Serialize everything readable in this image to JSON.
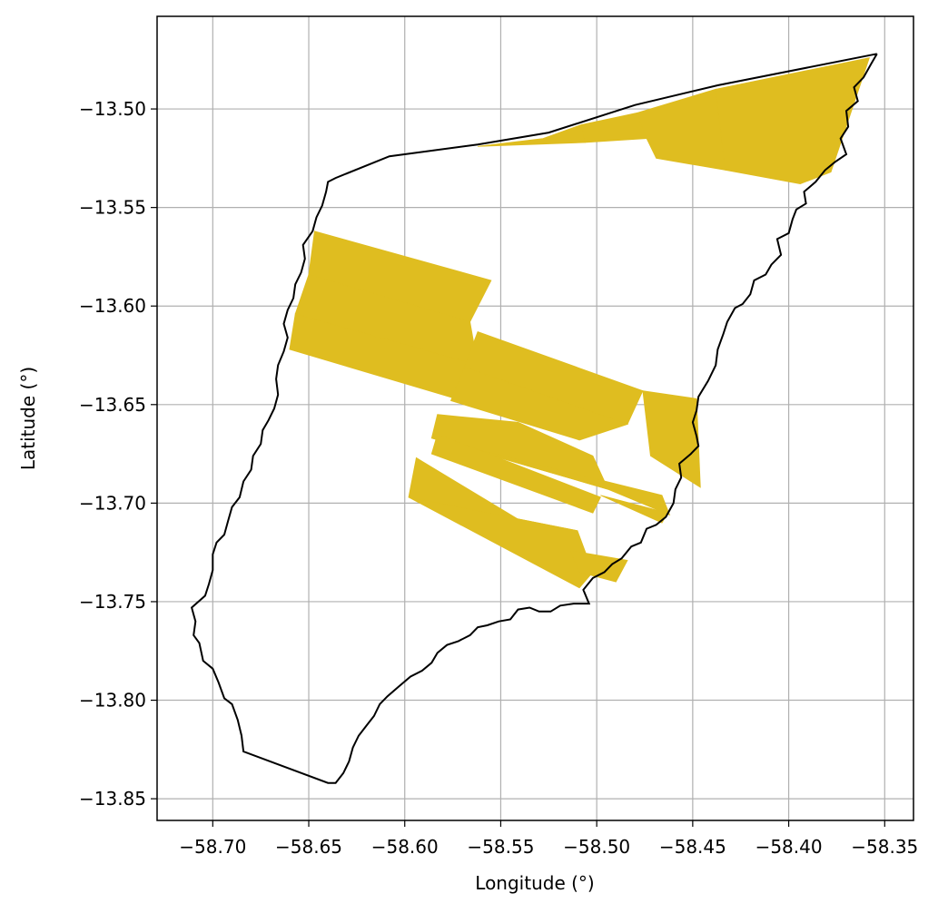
{
  "chart_data": {
    "type": "map",
    "xlabel": "Longitude (°)",
    "ylabel": "Latitude (°)",
    "xlim": [
      -58.729,
      -58.335
    ],
    "ylim": [
      -13.861,
      -13.453
    ],
    "x_ticks": [
      -58.7,
      -58.65,
      -58.6,
      -58.55,
      -58.5,
      -58.45,
      -58.4,
      -58.35
    ],
    "x_tick_labels": [
      "−58.70",
      "−58.65",
      "−58.60",
      "−58.55",
      "−58.50",
      "−58.45",
      "−58.40",
      "−58.35"
    ],
    "y_ticks": [
      -13.5,
      -13.55,
      -13.6,
      -13.65,
      -13.7,
      -13.75,
      -13.8,
      -13.85
    ],
    "y_tick_labels": [
      "−13.50",
      "−13.55",
      "−13.60",
      "−13.65",
      "−13.70",
      "−13.75",
      "−13.80",
      "−13.85"
    ],
    "grid": true,
    "fill_color": "#DFBD20",
    "outline_color": "#000000",
    "grid_color": "#b0b0b0",
    "boundary": [
      [
        -58.354,
        -13.472
      ],
      [
        -58.357,
        -13.477
      ],
      [
        -58.361,
        -13.484
      ],
      [
        -58.366,
        -13.489
      ],
      [
        -58.364,
        -13.496
      ],
      [
        -58.37,
        -13.501
      ],
      [
        -58.369,
        -13.509
      ],
      [
        -58.373,
        -13.515
      ],
      [
        -58.37,
        -13.523
      ],
      [
        -58.376,
        -13.527
      ],
      [
        -58.381,
        -13.531
      ],
      [
        -58.386,
        -13.537
      ],
      [
        -58.392,
        -13.542
      ],
      [
        -58.391,
        -13.548
      ],
      [
        -58.396,
        -13.551
      ],
      [
        -58.398,
        -13.556
      ],
      [
        -58.4,
        -13.563
      ],
      [
        -58.406,
        -13.566
      ],
      [
        -58.404,
        -13.574
      ],
      [
        -58.409,
        -13.579
      ],
      [
        -58.412,
        -13.584
      ],
      [
        -58.418,
        -13.587
      ],
      [
        -58.42,
        -13.594
      ],
      [
        -58.424,
        -13.599
      ],
      [
        -58.428,
        -13.601
      ],
      [
        -58.432,
        -13.608
      ],
      [
        -58.434,
        -13.614
      ],
      [
        -58.437,
        -13.622
      ],
      [
        -58.438,
        -13.63
      ],
      [
        -58.442,
        -13.638
      ],
      [
        -58.447,
        -13.646
      ],
      [
        -58.448,
        -13.653
      ],
      [
        -58.45,
        -13.659
      ],
      [
        -58.448,
        -13.666
      ],
      [
        -58.447,
        -13.671
      ],
      [
        -58.451,
        -13.675
      ],
      [
        -58.457,
        -13.68
      ],
      [
        -58.456,
        -13.687
      ],
      [
        -58.459,
        -13.693
      ],
      [
        -58.46,
        -13.7
      ],
      [
        -58.464,
        -13.707
      ],
      [
        -58.469,
        -13.711
      ],
      [
        -58.474,
        -13.713
      ],
      [
        -58.477,
        -13.72
      ],
      [
        -58.482,
        -13.722
      ],
      [
        -58.487,
        -13.728
      ],
      [
        -58.492,
        -13.731
      ],
      [
        -58.496,
        -13.735
      ],
      [
        -58.502,
        -13.738
      ],
      [
        -58.507,
        -13.744
      ],
      [
        -58.504,
        -13.751
      ],
      [
        -58.512,
        -13.751
      ],
      [
        -58.519,
        -13.752
      ],
      [
        -58.524,
        -13.755
      ],
      [
        -58.53,
        -13.755
      ],
      [
        -58.535,
        -13.753
      ],
      [
        -58.541,
        -13.754
      ],
      [
        -58.545,
        -13.759
      ],
      [
        -58.551,
        -13.76
      ],
      [
        -58.557,
        -13.762
      ],
      [
        -58.562,
        -13.763
      ],
      [
        -58.566,
        -13.767
      ],
      [
        -58.572,
        -13.77
      ],
      [
        -58.578,
        -13.772
      ],
      [
        -58.583,
        -13.776
      ],
      [
        -58.586,
        -13.781
      ],
      [
        -58.591,
        -13.785
      ],
      [
        -58.597,
        -13.788
      ],
      [
        -58.603,
        -13.793
      ],
      [
        -58.609,
        -13.798
      ],
      [
        -58.613,
        -13.802
      ],
      [
        -58.616,
        -13.808
      ],
      [
        -58.62,
        -13.813
      ],
      [
        -58.624,
        -13.818
      ],
      [
        -58.627,
        -13.824
      ],
      [
        -58.629,
        -13.831
      ],
      [
        -58.632,
        -13.837
      ],
      [
        -58.636,
        -13.842
      ],
      [
        -58.64,
        -13.842
      ],
      [
        -58.684,
        -13.826
      ],
      [
        -58.685,
        -13.818
      ],
      [
        -58.687,
        -13.81
      ],
      [
        -58.69,
        -13.802
      ],
      [
        -58.694,
        -13.799
      ],
      [
        -58.697,
        -13.791
      ],
      [
        -58.7,
        -13.784
      ],
      [
        -58.705,
        -13.78
      ],
      [
        -58.707,
        -13.771
      ],
      [
        -58.71,
        -13.767
      ],
      [
        -58.709,
        -13.76
      ],
      [
        -58.711,
        -13.753
      ],
      [
        -58.704,
        -13.747
      ],
      [
        -58.702,
        -13.741
      ],
      [
        -58.7,
        -13.734
      ],
      [
        -58.7,
        -13.726
      ],
      [
        -58.698,
        -13.72
      ],
      [
        -58.694,
        -13.716
      ],
      [
        -58.692,
        -13.709
      ],
      [
        -58.69,
        -13.702
      ],
      [
        -58.686,
        -13.697
      ],
      [
        -58.684,
        -13.689
      ],
      [
        -58.68,
        -13.683
      ],
      [
        -58.679,
        -13.676
      ],
      [
        -58.675,
        -13.67
      ],
      [
        -58.674,
        -13.663
      ],
      [
        -58.671,
        -13.658
      ],
      [
        -58.668,
        -13.652
      ],
      [
        -58.666,
        -13.645
      ],
      [
        -58.667,
        -13.637
      ],
      [
        -58.666,
        -13.63
      ],
      [
        -58.663,
        -13.623
      ],
      [
        -58.661,
        -13.616
      ],
      [
        -58.663,
        -13.609
      ],
      [
        -58.661,
        -13.602
      ],
      [
        -58.658,
        -13.596
      ],
      [
        -58.657,
        -13.589
      ],
      [
        -58.654,
        -13.583
      ],
      [
        -58.652,
        -13.576
      ],
      [
        -58.653,
        -13.569
      ],
      [
        -58.648,
        -13.562
      ],
      [
        -58.646,
        -13.555
      ],
      [
        -58.643,
        -13.549
      ],
      [
        -58.641,
        -13.542
      ],
      [
        -58.64,
        -13.537
      ],
      [
        -58.636,
        -13.535
      ],
      [
        -58.608,
        -13.524
      ],
      [
        -58.562,
        -13.518
      ],
      [
        -58.525,
        -13.512
      ],
      [
        -58.48,
        -13.498
      ],
      [
        -58.437,
        -13.488
      ],
      [
        -58.354,
        -13.472
      ]
    ],
    "parcels": [
      [
        [
          -58.562,
          -13.519
        ],
        [
          -58.528,
          -13.515
        ],
        [
          -58.508,
          -13.508
        ],
        [
          -58.506,
          -13.517
        ]
      ],
      [
        [
          -58.506,
          -13.517
        ],
        [
          -58.508,
          -13.508
        ],
        [
          -58.479,
          -13.502
        ],
        [
          -58.474,
          -13.515
        ]
      ],
      [
        [
          -58.474,
          -13.515
        ],
        [
          -58.479,
          -13.502
        ],
        [
          -58.438,
          -13.49
        ],
        [
          -58.433,
          -13.531
        ],
        [
          -58.469,
          -13.525
        ]
      ],
      [
        [
          -58.433,
          -13.531
        ],
        [
          -58.438,
          -13.49
        ],
        [
          -58.358,
          -13.474
        ],
        [
          -58.378,
          -13.532
        ],
        [
          -58.394,
          -13.538
        ]
      ],
      [
        [
          -58.647,
          -13.562
        ],
        [
          -58.555,
          -13.587
        ],
        [
          -58.566,
          -13.608
        ],
        [
          -58.65,
          -13.584
        ]
      ],
      [
        [
          -58.65,
          -13.584
        ],
        [
          -58.566,
          -13.608
        ],
        [
          -58.562,
          -13.63
        ],
        [
          -58.657,
          -13.604
        ]
      ],
      [
        [
          -58.657,
          -13.604
        ],
        [
          -58.562,
          -13.63
        ],
        [
          -58.57,
          -13.648
        ],
        [
          -58.66,
          -13.622
        ]
      ],
      [
        [
          -58.562,
          -13.613
        ],
        [
          -58.476,
          -13.643
        ],
        [
          -58.484,
          -13.66
        ],
        [
          -58.569,
          -13.631
        ]
      ],
      [
        [
          -58.569,
          -13.631
        ],
        [
          -58.484,
          -13.66
        ],
        [
          -58.509,
          -13.668
        ],
        [
          -58.576,
          -13.648
        ]
      ],
      [
        [
          -58.476,
          -13.643
        ],
        [
          -58.448,
          -13.647
        ],
        [
          -58.446,
          -13.692
        ],
        [
          -58.472,
          -13.676
        ]
      ],
      [
        [
          -58.583,
          -13.655
        ],
        [
          -58.541,
          -13.659
        ],
        [
          -58.502,
          -13.676
        ],
        [
          -58.494,
          -13.693
        ],
        [
          -58.586,
          -13.667
        ]
      ],
      [
        [
          -58.586,
          -13.667
        ],
        [
          -58.494,
          -13.693
        ],
        [
          -58.462,
          -13.706
        ],
        [
          -58.466,
          -13.696
        ]
      ],
      [
        [
          -58.586,
          -13.675
        ],
        [
          -58.502,
          -13.705
        ],
        [
          -58.498,
          -13.697
        ],
        [
          -58.583,
          -13.665
        ]
      ],
      [
        [
          -58.594,
          -13.677
        ],
        [
          -58.514,
          -13.724
        ],
        [
          -58.51,
          -13.714
        ],
        [
          -58.598,
          -13.697
        ]
      ],
      [
        [
          -58.598,
          -13.697
        ],
        [
          -58.51,
          -13.714
        ],
        [
          -58.502,
          -13.735
        ],
        [
          -58.509,
          -13.743
        ]
      ],
      [
        [
          -58.514,
          -13.724
        ],
        [
          -58.484,
          -13.729
        ],
        [
          -58.49,
          -13.74
        ],
        [
          -58.509,
          -13.735
        ]
      ],
      [
        [
          -58.498,
          -13.696
        ],
        [
          -58.463,
          -13.705
        ],
        [
          -58.466,
          -13.71
        ]
      ]
    ]
  }
}
